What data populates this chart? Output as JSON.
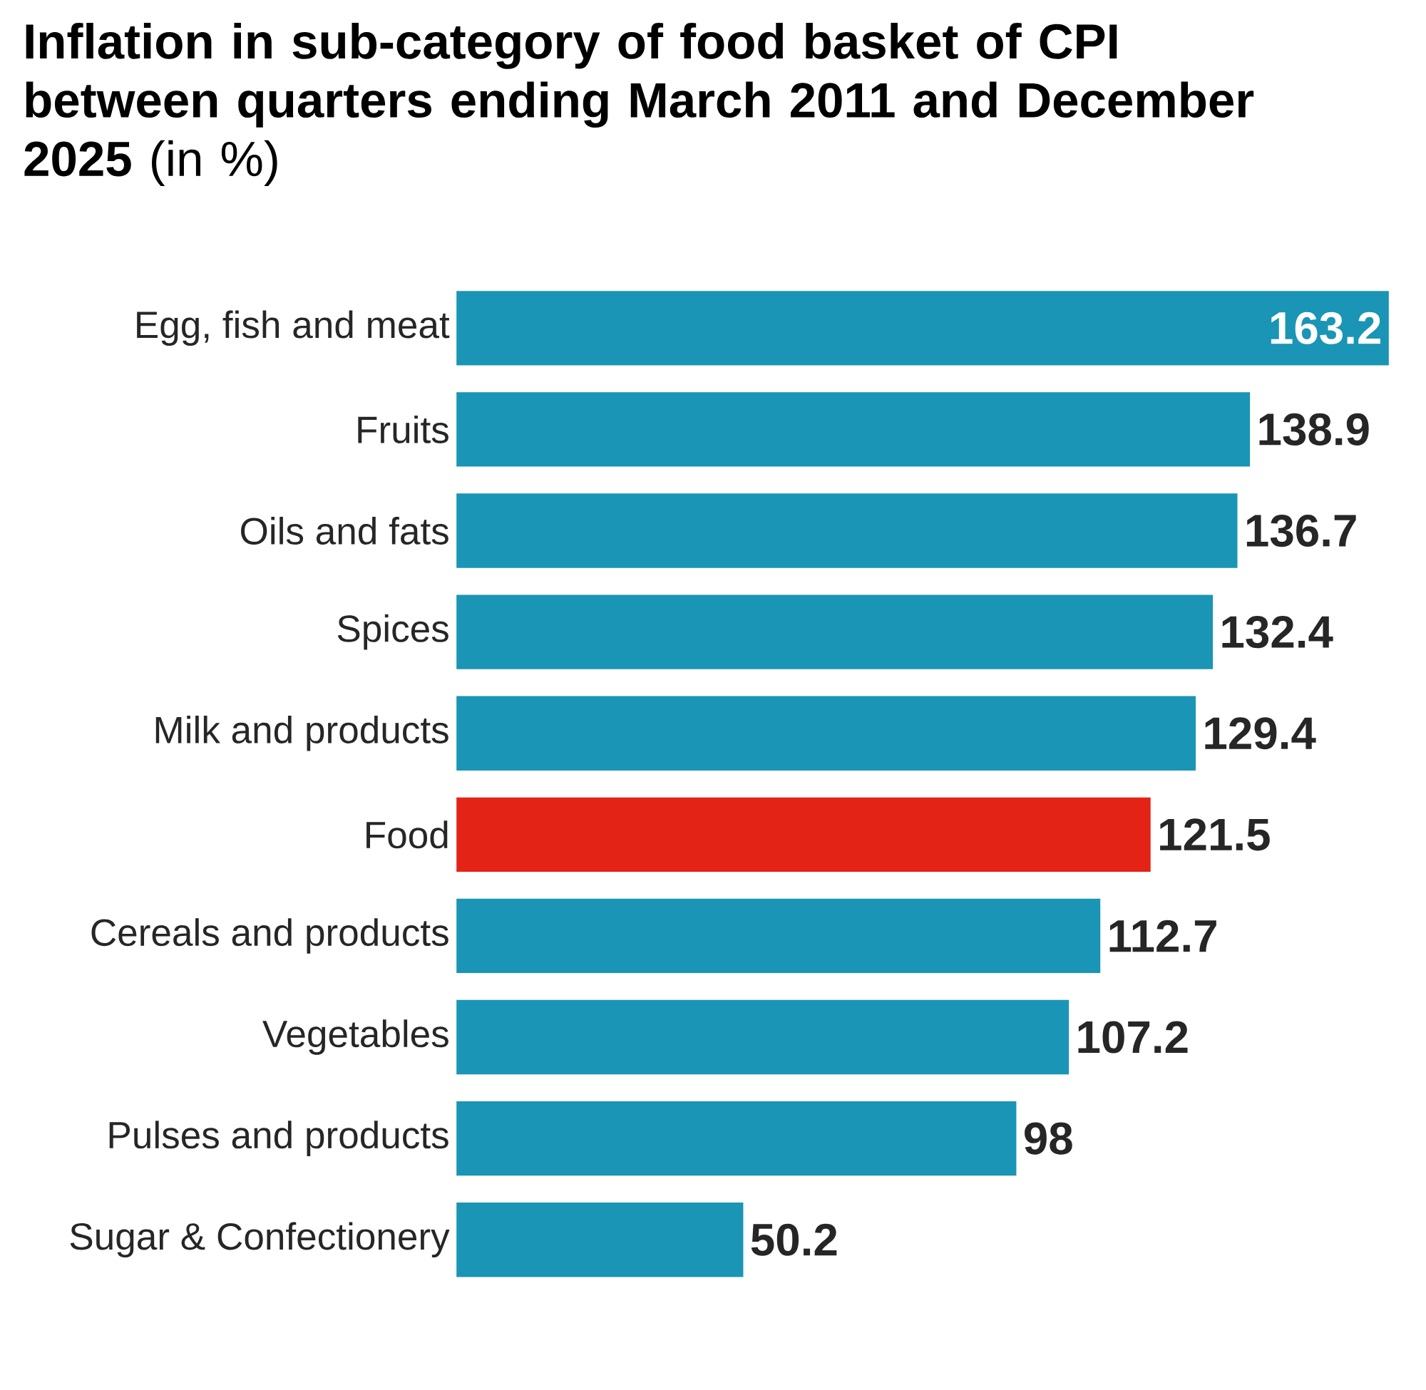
{
  "chart_data": {
    "type": "bar",
    "orientation": "horizontal",
    "title": "**Inflation in sub-category of food basket of CPI between quarters ending March 2011 and December 2025** (in %)",
    "categories": [
      "Egg, fish and meat",
      "Fruits",
      "Oils and fats",
      "Spices",
      "Milk and products",
      "Food",
      "Cereals and products",
      "Vegetables",
      "Pulses and products",
      "Sugar & Confectionery"
    ],
    "values": [
      163.2,
      138.9,
      136.7,
      132.4,
      129.4,
      121.5,
      112.7,
      107.2,
      98,
      50.2
    ],
    "colors": [
      "#1a95b5",
      "#1a95b5",
      "#1a95b5",
      "#1a95b5",
      "#1a95b5",
      "#e32316",
      "#1a95b5",
      "#1a95b5",
      "#1a95b5",
      "#1a95b5"
    ],
    "data_labels": true
  }
}
